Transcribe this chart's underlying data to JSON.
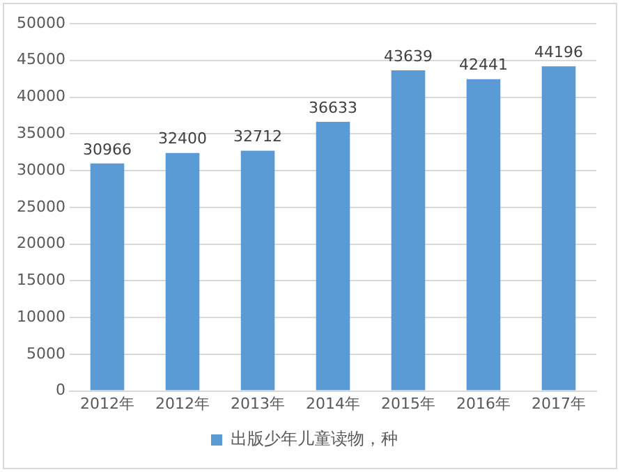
{
  "chart_data": {
    "type": "bar",
    "categories": [
      "2012年",
      "2012年",
      "2013年",
      "2014年",
      "2015年",
      "2016年",
      "2017年"
    ],
    "series": [
      {
        "name": "出版少年儿童读物，种",
        "color": "#5b9bd5",
        "values": [
          30966,
          32400,
          32712,
          36633,
          43639,
          42441,
          44196
        ]
      }
    ],
    "ylim": [
      0,
      50000
    ],
    "yticks": [
      0,
      5000,
      10000,
      15000,
      20000,
      25000,
      30000,
      35000,
      40000,
      45000,
      50000
    ],
    "grid": "y",
    "legend": "bottom",
    "data_labels": true
  }
}
